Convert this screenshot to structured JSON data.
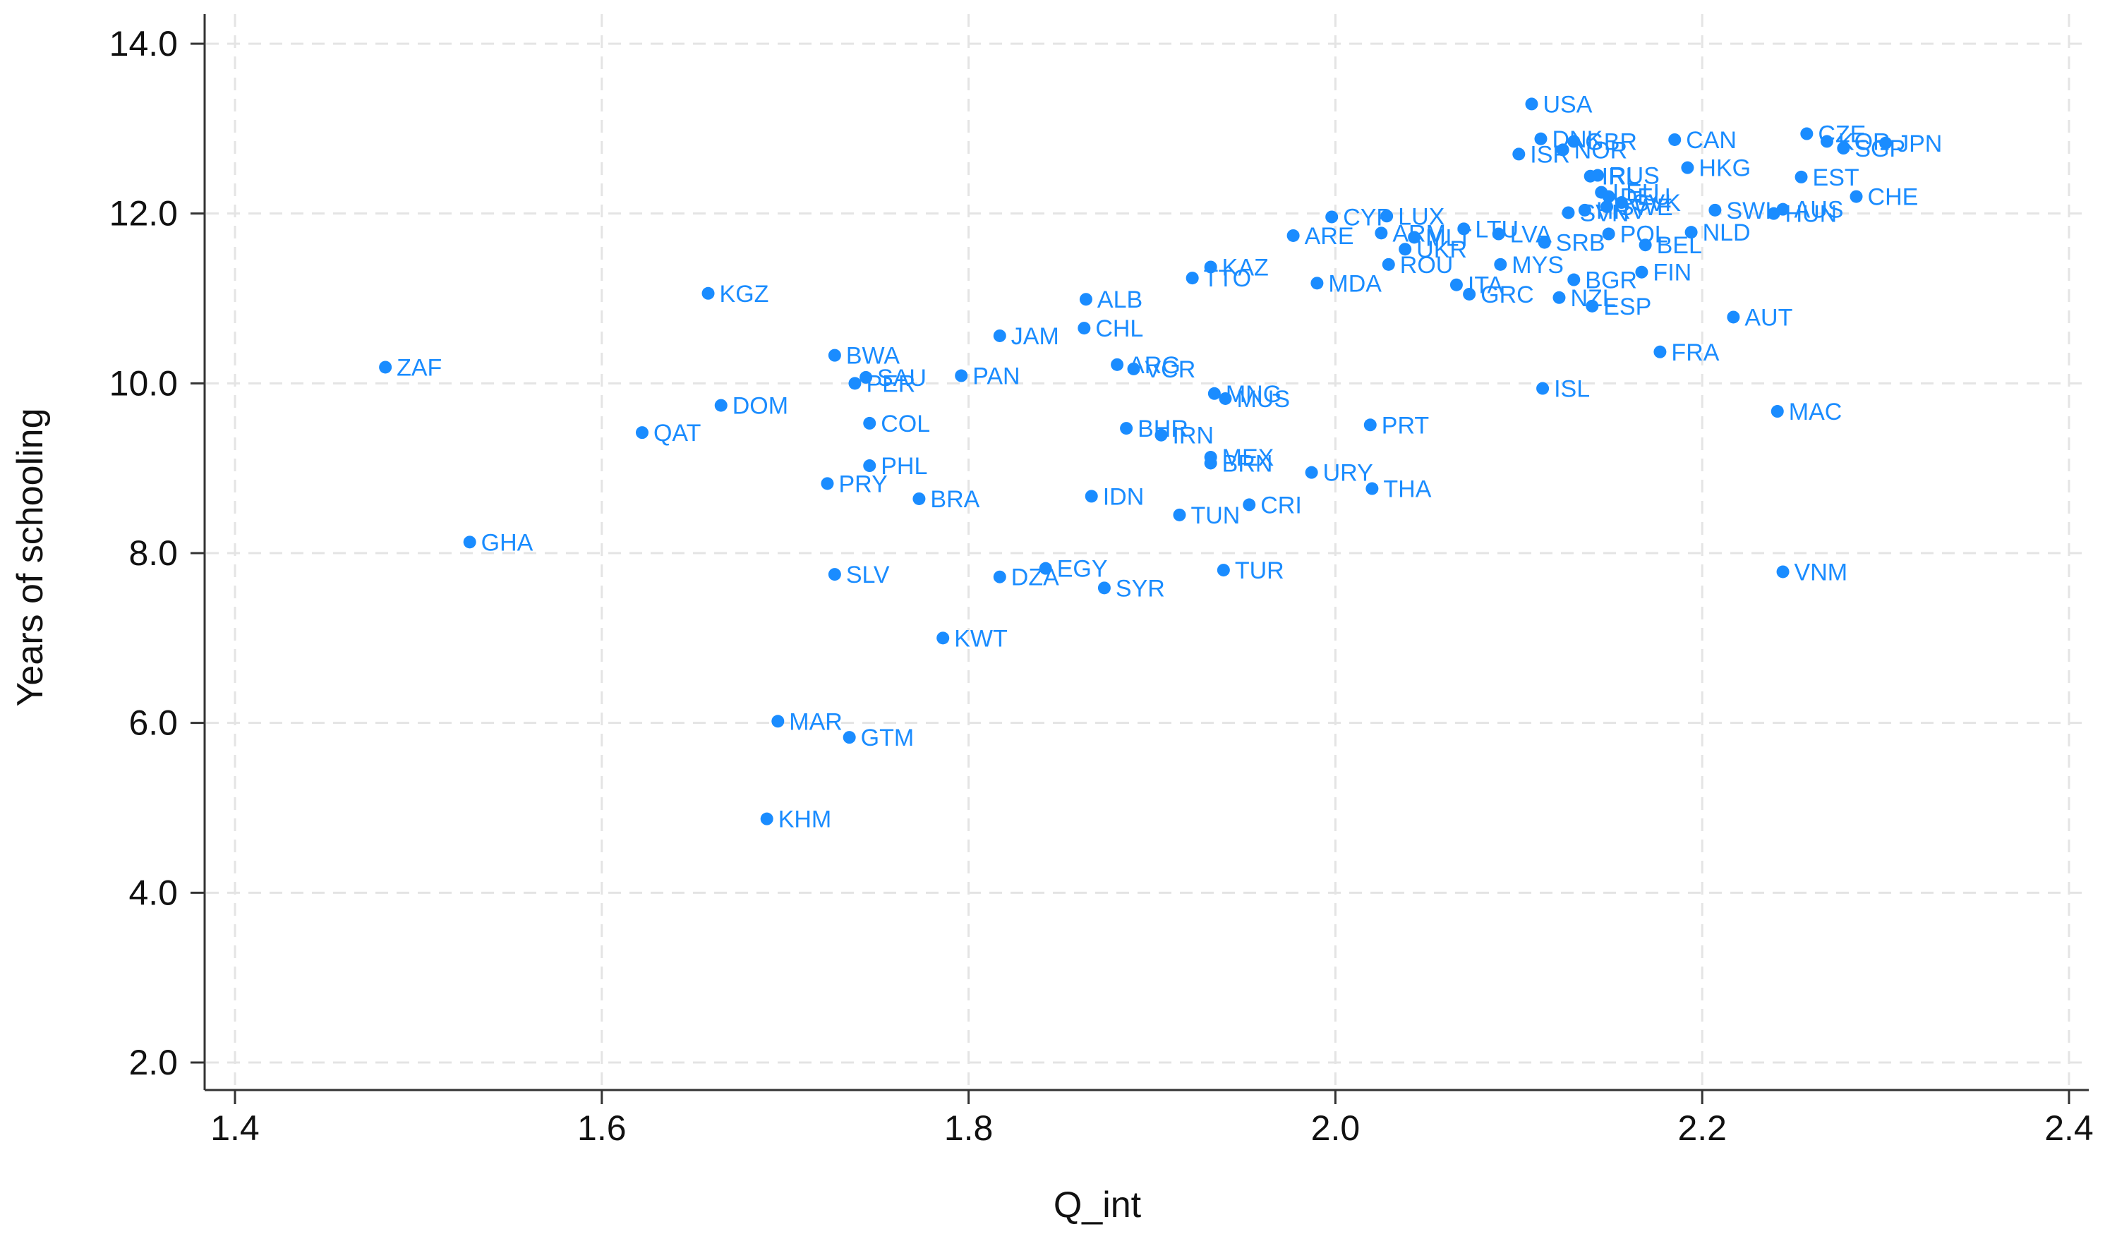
{
  "chart_data": {
    "type": "scatter",
    "title": "",
    "xlabel": "Q_int",
    "ylabel": "Years of schooling",
    "xlim": [
      1.4,
      2.4
    ],
    "ylim": [
      2.0,
      14.0
    ],
    "xticks": [
      "1.4",
      "1.6",
      "1.8",
      "2.0",
      "2.2",
      "2.4"
    ],
    "yticks": [
      "2.0",
      "4.0",
      "6.0",
      "8.0",
      "10.0",
      "12.0",
      "14.0"
    ],
    "grid": true,
    "color": "#1a8cff",
    "points": [
      {
        "label": "ZAF",
        "x": 1.482,
        "y": 10.19
      },
      {
        "label": "GHA",
        "x": 1.528,
        "y": 8.13
      },
      {
        "label": "QAT",
        "x": 1.622,
        "y": 9.42
      },
      {
        "label": "KGZ",
        "x": 1.658,
        "y": 11.06
      },
      {
        "label": "DOM",
        "x": 1.665,
        "y": 9.74
      },
      {
        "label": "KHM",
        "x": 1.69,
        "y": 4.87
      },
      {
        "label": "MAR",
        "x": 1.696,
        "y": 6.02
      },
      {
        "label": "PRY",
        "x": 1.723,
        "y": 8.82
      },
      {
        "label": "BWA",
        "x": 1.727,
        "y": 10.33
      },
      {
        "label": "SLV",
        "x": 1.727,
        "y": 7.75
      },
      {
        "label": "GTM",
        "x": 1.735,
        "y": 5.83
      },
      {
        "label": "PER",
        "x": 1.738,
        "y": 10.0
      },
      {
        "label": "SAU",
        "x": 1.744,
        "y": 10.07
      },
      {
        "label": "COL",
        "x": 1.746,
        "y": 9.53
      },
      {
        "label": "PHL",
        "x": 1.746,
        "y": 9.03
      },
      {
        "label": "BRA",
        "x": 1.773,
        "y": 8.64
      },
      {
        "label": "KWT",
        "x": 1.786,
        "y": 7.0
      },
      {
        "label": "PAN",
        "x": 1.796,
        "y": 10.09
      },
      {
        "label": "JAM",
        "x": 1.817,
        "y": 10.56
      },
      {
        "label": "DZA",
        "x": 1.817,
        "y": 7.72
      },
      {
        "label": "EGY",
        "x": 1.842,
        "y": 7.82
      },
      {
        "label": "CHL",
        "x": 1.863,
        "y": 10.65
      },
      {
        "label": "ALB",
        "x": 1.864,
        "y": 10.99
      },
      {
        "label": "IDN",
        "x": 1.867,
        "y": 8.67
      },
      {
        "label": "SYR",
        "x": 1.874,
        "y": 7.59
      },
      {
        "label": "ARG",
        "x": 1.881,
        "y": 10.22
      },
      {
        "label": "BHR",
        "x": 1.886,
        "y": 9.47
      },
      {
        "label": "VCR",
        "x": 1.89,
        "y": 10.17
      },
      {
        "label": "IRN",
        "x": 1.905,
        "y": 9.39
      },
      {
        "label": "TUN",
        "x": 1.915,
        "y": 8.45
      },
      {
        "label": "TTO",
        "x": 1.922,
        "y": 11.24
      },
      {
        "label": "KAZ",
        "x": 1.932,
        "y": 11.37
      },
      {
        "label": "MEX",
        "x": 1.932,
        "y": 9.13
      },
      {
        "label": "BRN",
        "x": 1.932,
        "y": 9.06
      },
      {
        "label": "MNG",
        "x": 1.934,
        "y": 9.88
      },
      {
        "label": "TUR",
        "x": 1.939,
        "y": 7.8
      },
      {
        "label": "MUS",
        "x": 1.94,
        "y": 9.82
      },
      {
        "label": "CRI",
        "x": 1.953,
        "y": 8.57
      },
      {
        "label": "ARE",
        "x": 1.977,
        "y": 11.74
      },
      {
        "label": "URY",
        "x": 1.987,
        "y": 8.95
      },
      {
        "label": "MDA",
        "x": 1.99,
        "y": 11.18
      },
      {
        "label": "CYP",
        "x": 1.998,
        "y": 11.96
      },
      {
        "label": "PRT",
        "x": 2.019,
        "y": 9.51
      },
      {
        "label": "THA",
        "x": 2.02,
        "y": 8.76
      },
      {
        "label": "ARM",
        "x": 2.025,
        "y": 11.77
      },
      {
        "label": "LUX",
        "x": 2.028,
        "y": 11.97
      },
      {
        "label": "ROU",
        "x": 2.029,
        "y": 11.4
      },
      {
        "label": "UKR",
        "x": 2.038,
        "y": 11.58
      },
      {
        "label": "MLT",
        "x": 2.043,
        "y": 11.72
      },
      {
        "label": "ITA",
        "x": 2.066,
        "y": 11.16
      },
      {
        "label": "LTU",
        "x": 2.07,
        "y": 11.82
      },
      {
        "label": "GRC",
        "x": 2.073,
        "y": 11.05
      },
      {
        "label": "LVA",
        "x": 2.089,
        "y": 11.76
      },
      {
        "label": "MYS",
        "x": 2.09,
        "y": 11.4
      },
      {
        "label": "ISR",
        "x": 2.1,
        "y": 12.7
      },
      {
        "label": "USA",
        "x": 2.107,
        "y": 13.29
      },
      {
        "label": "DNK",
        "x": 2.112,
        "y": 12.88
      },
      {
        "label": "ISL",
        "x": 2.113,
        "y": 9.94
      },
      {
        "label": "SRB",
        "x": 2.114,
        "y": 11.66
      },
      {
        "label": "NZL",
        "x": 2.122,
        "y": 11.01
      },
      {
        "label": "NOR",
        "x": 2.124,
        "y": 12.75
      },
      {
        "label": "SVN",
        "x": 2.127,
        "y": 12.01
      },
      {
        "label": "BGR",
        "x": 2.13,
        "y": 11.22
      },
      {
        "label": "GBR",
        "x": 2.13,
        "y": 12.85
      },
      {
        "label": "HRV",
        "x": 2.136,
        "y": 12.04
      },
      {
        "label": "IRL",
        "x": 2.139,
        "y": 12.44
      },
      {
        "label": "ESP",
        "x": 2.14,
        "y": 10.91
      },
      {
        "label": "RUS",
        "x": 2.143,
        "y": 12.45
      },
      {
        "label": "LEU",
        "x": 2.145,
        "y": 12.25
      },
      {
        "label": "DEU",
        "x": 2.149,
        "y": 12.2
      },
      {
        "label": "SWE",
        "x": 2.148,
        "y": 12.08
      },
      {
        "label": "POL",
        "x": 2.149,
        "y": 11.76
      },
      {
        "label": "SVK",
        "x": 2.156,
        "y": 12.13
      },
      {
        "label": "FIN",
        "x": 2.167,
        "y": 11.31
      },
      {
        "label": "BEL",
        "x": 2.169,
        "y": 11.63
      },
      {
        "label": "FRA",
        "x": 2.177,
        "y": 10.37
      },
      {
        "label": "CAN",
        "x": 2.185,
        "y": 12.87
      },
      {
        "label": "HKG",
        "x": 2.192,
        "y": 12.54
      },
      {
        "label": "NLD",
        "x": 2.194,
        "y": 11.78
      },
      {
        "label": "SWI",
        "x": 2.207,
        "y": 12.04
      },
      {
        "label": "AUT",
        "x": 2.217,
        "y": 10.78
      },
      {
        "label": "HUN",
        "x": 2.239,
        "y": 12.0
      },
      {
        "label": "AUS",
        "x": 2.244,
        "y": 12.05
      },
      {
        "label": "MAC",
        "x": 2.241,
        "y": 9.67
      },
      {
        "label": "VNM",
        "x": 2.244,
        "y": 7.78
      },
      {
        "label": "EST",
        "x": 2.254,
        "y": 12.43
      },
      {
        "label": "CZE",
        "x": 2.257,
        "y": 12.94
      },
      {
        "label": "CHE",
        "x": 2.284,
        "y": 12.2
      },
      {
        "label": "KOR",
        "x": 2.268,
        "y": 12.85
      },
      {
        "label": "SGP",
        "x": 2.277,
        "y": 12.77
      },
      {
        "label": "JPN",
        "x": 2.3,
        "y": 12.83
      }
    ]
  }
}
